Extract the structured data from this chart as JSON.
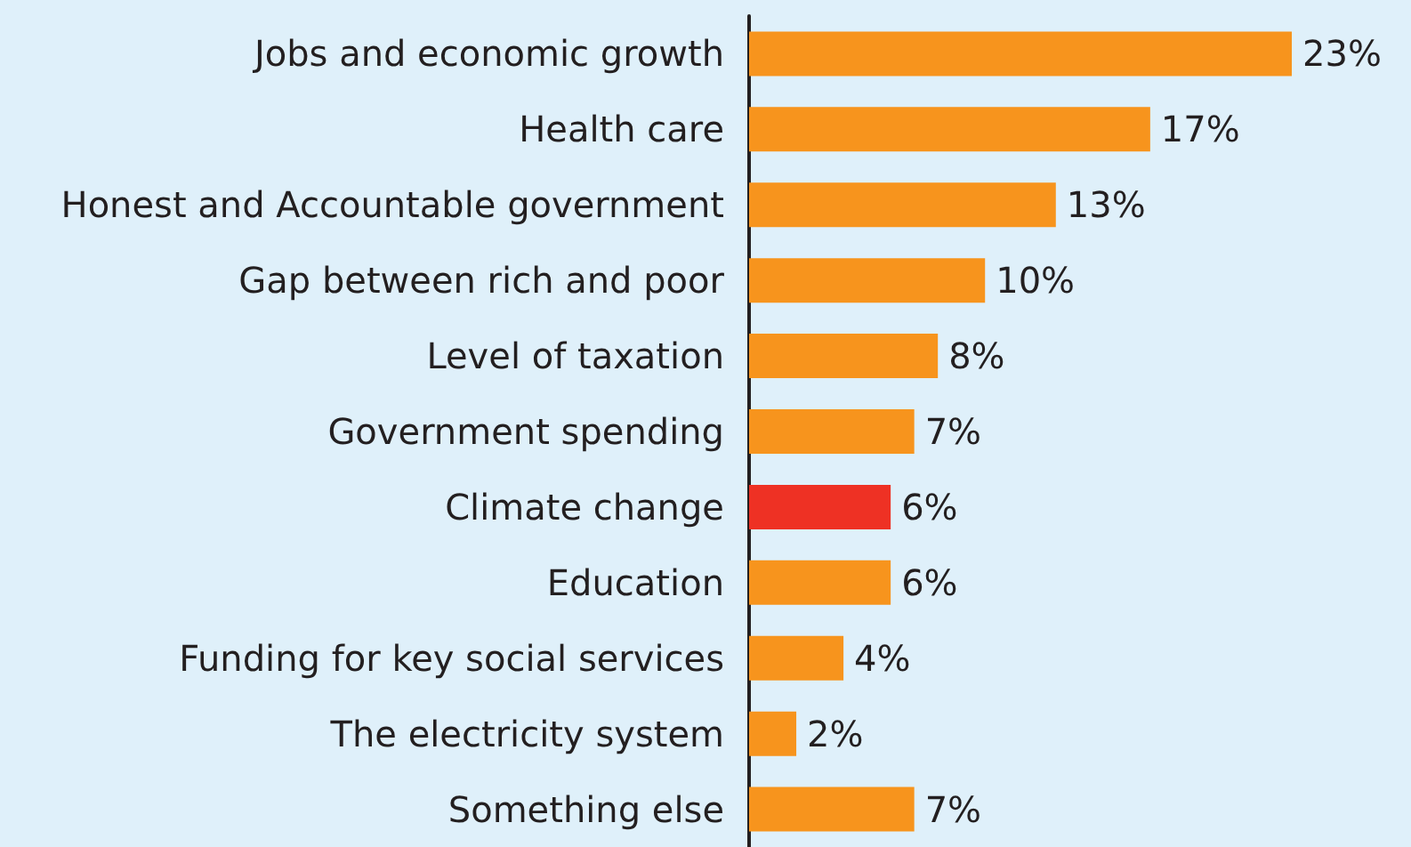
{
  "chart_data": {
    "type": "bar",
    "orientation": "horizontal",
    "categories": [
      "Jobs and economic growth",
      "Health care",
      "Honest and Accountable government",
      "Gap between rich and poor",
      "Level of taxation",
      "Government spending",
      "Climate change",
      "Education",
      "Funding for key social services",
      "The electricity system",
      "Something else"
    ],
    "values": [
      23,
      17,
      13,
      10,
      8,
      7,
      6,
      6,
      4,
      2,
      7
    ],
    "colors": [
      "#f7941d",
      "#f7941d",
      "#f7941d",
      "#f7941d",
      "#f7941d",
      "#f7941d",
      "#ee3124",
      "#f7941d",
      "#f7941d",
      "#f7941d",
      "#f7941d"
    ],
    "value_labels": [
      "23%",
      "17%",
      "13%",
      "10%",
      "8%",
      "7%",
      "6%",
      "6%",
      "4%",
      "2%",
      "7%"
    ],
    "tick_labels": "y"
  }
}
